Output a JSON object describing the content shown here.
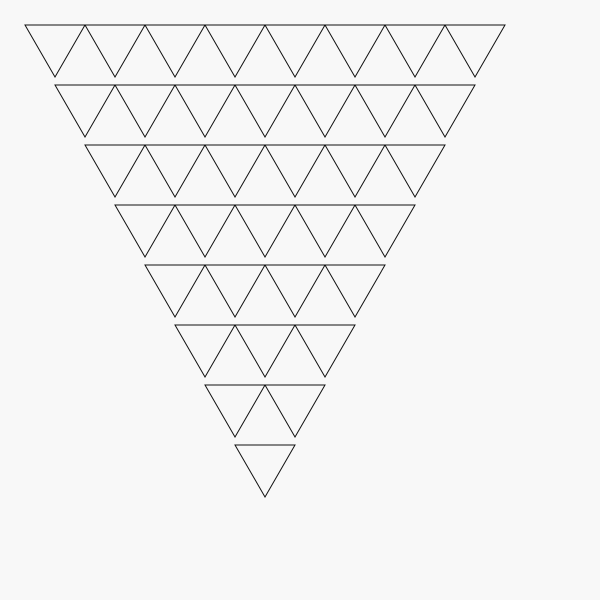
{
  "figure": {
    "shape": "inverted-triangle-of-triangles",
    "row_counts": [
      8,
      7,
      6,
      5,
      4,
      3,
      2,
      1
    ],
    "triangle_orientation": "point-down",
    "colors": {
      "background": "#f8f8f8",
      "stroke": "#111111"
    }
  }
}
